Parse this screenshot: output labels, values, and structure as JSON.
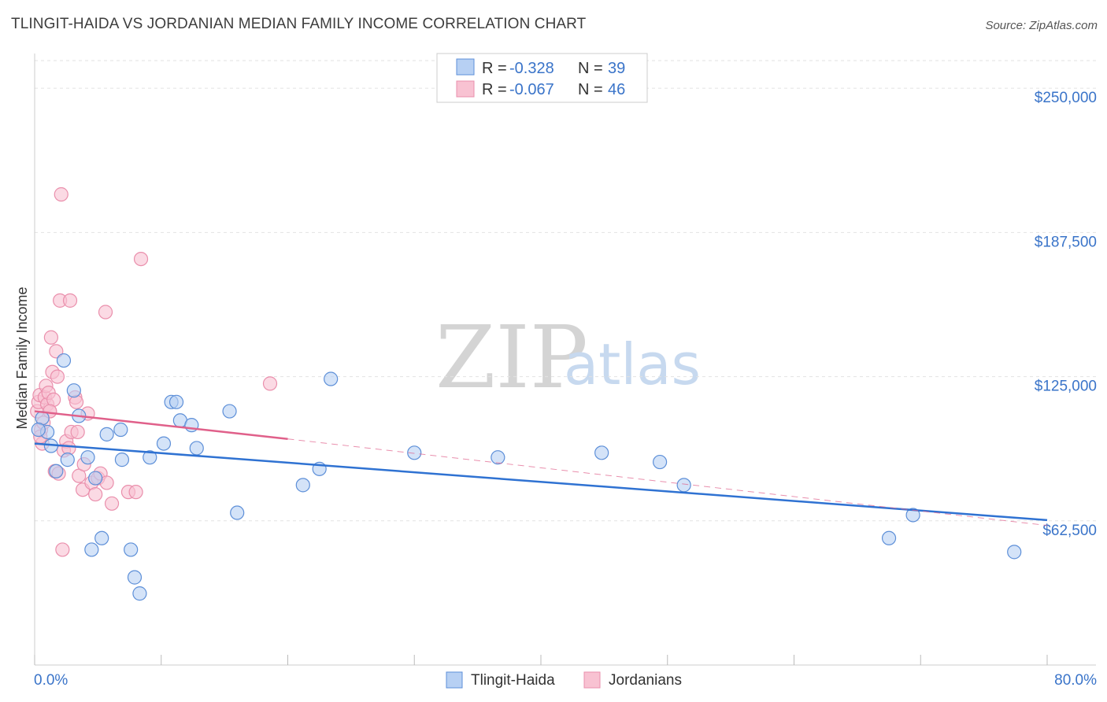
{
  "title": "TLINGIT-HAIDA VS JORDANIAN MEDIAN FAMILY INCOME CORRELATION CHART",
  "source": "Source: ZipAtlas.com",
  "watermark": {
    "zip": "ZIP",
    "atlas": "atlas"
  },
  "colors": {
    "blue_fill": "#b7d0f3",
    "blue_stroke": "#5d8fd8",
    "blue_line": "#2f72d2",
    "pink_fill": "#f8c2d2",
    "pink_stroke": "#ea8fac",
    "pink_line": "#e0608a",
    "axis_text": "#3a74c9",
    "grid": "#e2e2e2"
  },
  "legend": {
    "rows": [
      {
        "r_label": "R =",
        "r_value": "-0.328",
        "n_label": "N =",
        "n_value": "39"
      },
      {
        "r_label": "R =",
        "r_value": "-0.067",
        "n_label": "N =",
        "n_value": "46"
      }
    ]
  },
  "bottom_legend": [
    "Tlingit-Haida",
    "Jordanians"
  ],
  "chart_data": {
    "type": "scatter",
    "title": "TLINGIT-HAIDA VS JORDANIAN MEDIAN FAMILY INCOME CORRELATION CHART",
    "xlabel": "",
    "ylabel": "Median Family Income",
    "xlim": [
      0,
      80
    ],
    "ylim": [
      0,
      262000
    ],
    "x_tick_labels": [
      "0.0%",
      "80.0%"
    ],
    "y_ticks": [
      62500,
      125000,
      187500,
      250000
    ],
    "y_tick_labels": [
      "$62,500",
      "$125,000",
      "$187,500",
      "$250,000"
    ],
    "grid": true,
    "series": [
      {
        "name": "Tlingit-Haida",
        "r": -0.328,
        "n": 39,
        "trend": {
          "x0": 0,
          "y0": 96000,
          "x1": 80,
          "y1": 62800,
          "style": "solid"
        },
        "points": [
          [
            0.6,
            107000
          ],
          [
            1.0,
            101000
          ],
          [
            1.3,
            95000
          ],
          [
            1.7,
            84000
          ],
          [
            2.3,
            132000
          ],
          [
            2.6,
            89000
          ],
          [
            3.1,
            119000
          ],
          [
            3.5,
            108000
          ],
          [
            4.2,
            90000
          ],
          [
            4.5,
            50000
          ],
          [
            4.8,
            81000
          ],
          [
            5.3,
            55000
          ],
          [
            5.7,
            100000
          ],
          [
            6.8,
            102000
          ],
          [
            6.9,
            89000
          ],
          [
            7.6,
            50000
          ],
          [
            7.9,
            38000
          ],
          [
            8.3,
            31000
          ],
          [
            9.1,
            90000
          ],
          [
            10.2,
            96000
          ],
          [
            10.8,
            114000
          ],
          [
            11.2,
            114000
          ],
          [
            11.5,
            106000
          ],
          [
            12.4,
            104000
          ],
          [
            12.8,
            94000
          ],
          [
            15.4,
            110000
          ],
          [
            16.0,
            66000
          ],
          [
            21.2,
            78000
          ],
          [
            22.5,
            85000
          ],
          [
            23.4,
            124000
          ],
          [
            30.0,
            92000
          ],
          [
            36.6,
            90000
          ],
          [
            44.8,
            92000
          ],
          [
            49.4,
            88000
          ],
          [
            51.3,
            78000
          ],
          [
            67.5,
            55000
          ],
          [
            69.4,
            65000
          ],
          [
            77.4,
            49000
          ],
          [
            0.3,
            102000
          ]
        ]
      },
      {
        "name": "Jordanians",
        "r": -0.067,
        "n": 46,
        "trend": {
          "x0": 0,
          "y0": 110000,
          "x1": 20,
          "y1": 98000,
          "x_end": 80,
          "y_end": 60500,
          "style": "solid-then-dashed"
        },
        "points": [
          [
            0.2,
            110000
          ],
          [
            0.3,
            114000
          ],
          [
            0.4,
            117000
          ],
          [
            0.5,
            102000
          ],
          [
            0.6,
            96000
          ],
          [
            0.7,
            105000
          ],
          [
            0.8,
            116000
          ],
          [
            0.9,
            121000
          ],
          [
            1.0,
            113000
          ],
          [
            1.1,
            118000
          ],
          [
            1.2,
            110000
          ],
          [
            1.3,
            142000
          ],
          [
            1.4,
            127000
          ],
          [
            1.5,
            115000
          ],
          [
            1.6,
            84000
          ],
          [
            1.7,
            136000
          ],
          [
            1.8,
            125000
          ],
          [
            1.9,
            83000
          ],
          [
            2.0,
            158000
          ],
          [
            2.1,
            204000
          ],
          [
            2.2,
            50000
          ],
          [
            2.3,
            93000
          ],
          [
            2.5,
            97000
          ],
          [
            2.7,
            94000
          ],
          [
            2.8,
            158000
          ],
          [
            2.9,
            101000
          ],
          [
            3.2,
            116000
          ],
          [
            3.3,
            114000
          ],
          [
            3.4,
            101000
          ],
          [
            3.5,
            82000
          ],
          [
            3.8,
            76000
          ],
          [
            3.9,
            87000
          ],
          [
            4.2,
            109000
          ],
          [
            4.5,
            79000
          ],
          [
            4.8,
            74000
          ],
          [
            5.0,
            81000
          ],
          [
            5.2,
            83000
          ],
          [
            5.6,
            153000
          ],
          [
            5.7,
            79000
          ],
          [
            6.1,
            70000
          ],
          [
            7.4,
            75000
          ],
          [
            8.0,
            75000
          ],
          [
            8.4,
            176000
          ],
          [
            18.6,
            122000
          ],
          [
            0.45,
            99000
          ],
          [
            1.2,
            110000
          ]
        ]
      }
    ]
  }
}
